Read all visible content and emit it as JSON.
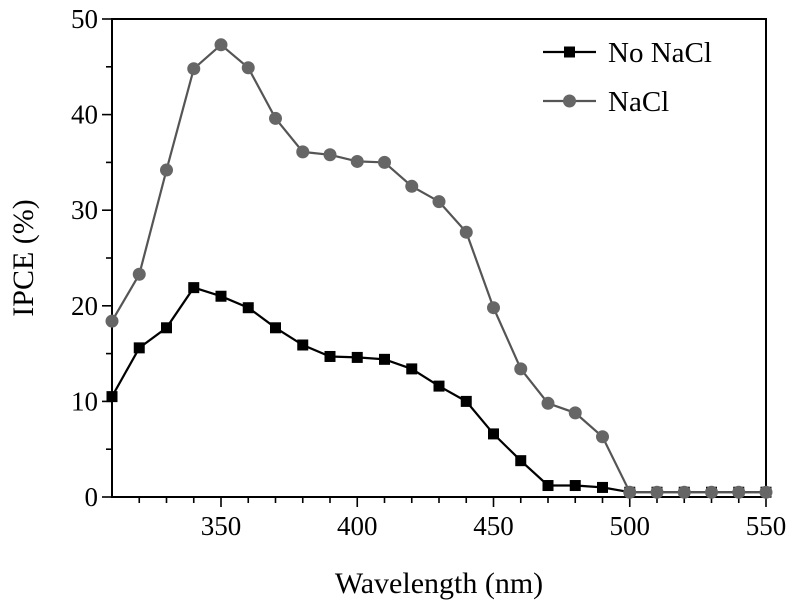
{
  "chart_data": {
    "type": "line",
    "xlabel": "Wavelength (nm)",
    "ylabel": "IPCE (%)",
    "xlim": [
      310,
      550
    ],
    "ylim": [
      0,
      50
    ],
    "xticks": [
      350,
      400,
      450,
      500,
      550
    ],
    "yticks": [
      0,
      10,
      20,
      30,
      40,
      50
    ],
    "grid": false,
    "legend_position": "top-right",
    "x": [
      310,
      320,
      330,
      340,
      350,
      360,
      370,
      380,
      390,
      400,
      410,
      420,
      430,
      440,
      450,
      460,
      470,
      480,
      490,
      500,
      510,
      520,
      530,
      540,
      550
    ],
    "series": [
      {
        "name": "No NaCl",
        "marker": "square",
        "color": "#000000",
        "line_color": "#000000",
        "values": [
          10.5,
          15.6,
          17.7,
          21.9,
          21.0,
          19.8,
          17.7,
          15.9,
          14.7,
          14.6,
          14.4,
          13.4,
          11.6,
          10.0,
          6.6,
          3.8,
          1.2,
          1.2,
          1.0,
          0.5,
          0.5,
          0.5,
          0.5,
          0.5,
          0.5
        ]
      },
      {
        "name": "NaCl",
        "marker": "circle",
        "color": "#666666",
        "line_color": "#555555",
        "values": [
          18.4,
          23.3,
          34.2,
          44.8,
          47.3,
          44.9,
          39.6,
          36.1,
          35.8,
          35.1,
          35.0,
          32.5,
          30.9,
          27.7,
          19.8,
          13.4,
          9.8,
          8.8,
          6.3,
          0.5,
          0.5,
          0.5,
          0.5,
          0.5,
          0.5
        ]
      }
    ]
  }
}
